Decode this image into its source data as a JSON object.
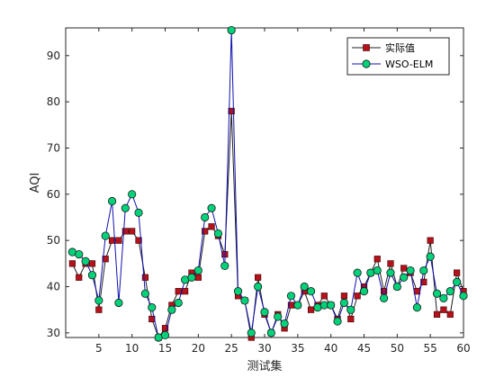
{
  "chart_data": {
    "type": "line",
    "xlabel": "测试集",
    "ylabel": "AQI",
    "xlim": [
      0,
      60
    ],
    "ylim": [
      29,
      96
    ],
    "xticks": [
      5,
      10,
      15,
      20,
      25,
      30,
      35,
      40,
      45,
      50,
      55,
      60
    ],
    "yticks": [
      30,
      40,
      50,
      60,
      70,
      80,
      90
    ],
    "grid": false,
    "legend_position": "top-right",
    "x": [
      1,
      2,
      3,
      4,
      5,
      6,
      7,
      8,
      9,
      10,
      11,
      12,
      13,
      14,
      15,
      16,
      17,
      18,
      19,
      20,
      21,
      22,
      23,
      24,
      25,
      26,
      27,
      28,
      29,
      30,
      31,
      32,
      33,
      34,
      35,
      36,
      37,
      38,
      39,
      40,
      41,
      42,
      43,
      44,
      45,
      46,
      47,
      48,
      49,
      50,
      51,
      52,
      53,
      54,
      55,
      56,
      57,
      58,
      59,
      60
    ],
    "series": [
      {
        "name": "实际值",
        "color": "#b5121b",
        "line_color": "#1f1f1f",
        "marker": "square",
        "values": [
          45,
          42,
          45,
          45,
          35,
          46,
          50,
          50,
          52,
          52,
          50,
          42,
          33,
          29,
          31,
          36,
          39,
          39,
          43,
          42,
          52,
          53,
          51,
          47,
          78,
          38,
          37,
          29,
          42,
          34,
          30,
          34,
          31,
          36,
          36,
          39,
          35,
          36,
          38,
          36,
          33,
          38,
          33,
          38,
          40,
          43,
          46,
          39,
          45,
          40,
          44,
          43,
          39,
          41,
          50,
          34,
          35,
          34,
          43,
          39
        ]
      },
      {
        "name": "WSO-ELM",
        "color": "#00d27a",
        "line_color": "#1010b0",
        "marker": "circle",
        "values": [
          47.5,
          47,
          45.5,
          42.5,
          37,
          51,
          58.5,
          36.5,
          57,
          60,
          56,
          38.5,
          35.5,
          29,
          29.5,
          35,
          36.5,
          41.5,
          42,
          43.5,
          55,
          57,
          51.5,
          44.5,
          95.5,
          39,
          37,
          30,
          40,
          34.5,
          30,
          33.5,
          32,
          38,
          36,
          40,
          39,
          35.5,
          36,
          36,
          32.5,
          36.5,
          35,
          43,
          39,
          43,
          43.5,
          37.5,
          43,
          40,
          42,
          43.5,
          35.5,
          43.5,
          46.5,
          38.5,
          37.5,
          39,
          41,
          38
        ]
      }
    ]
  }
}
